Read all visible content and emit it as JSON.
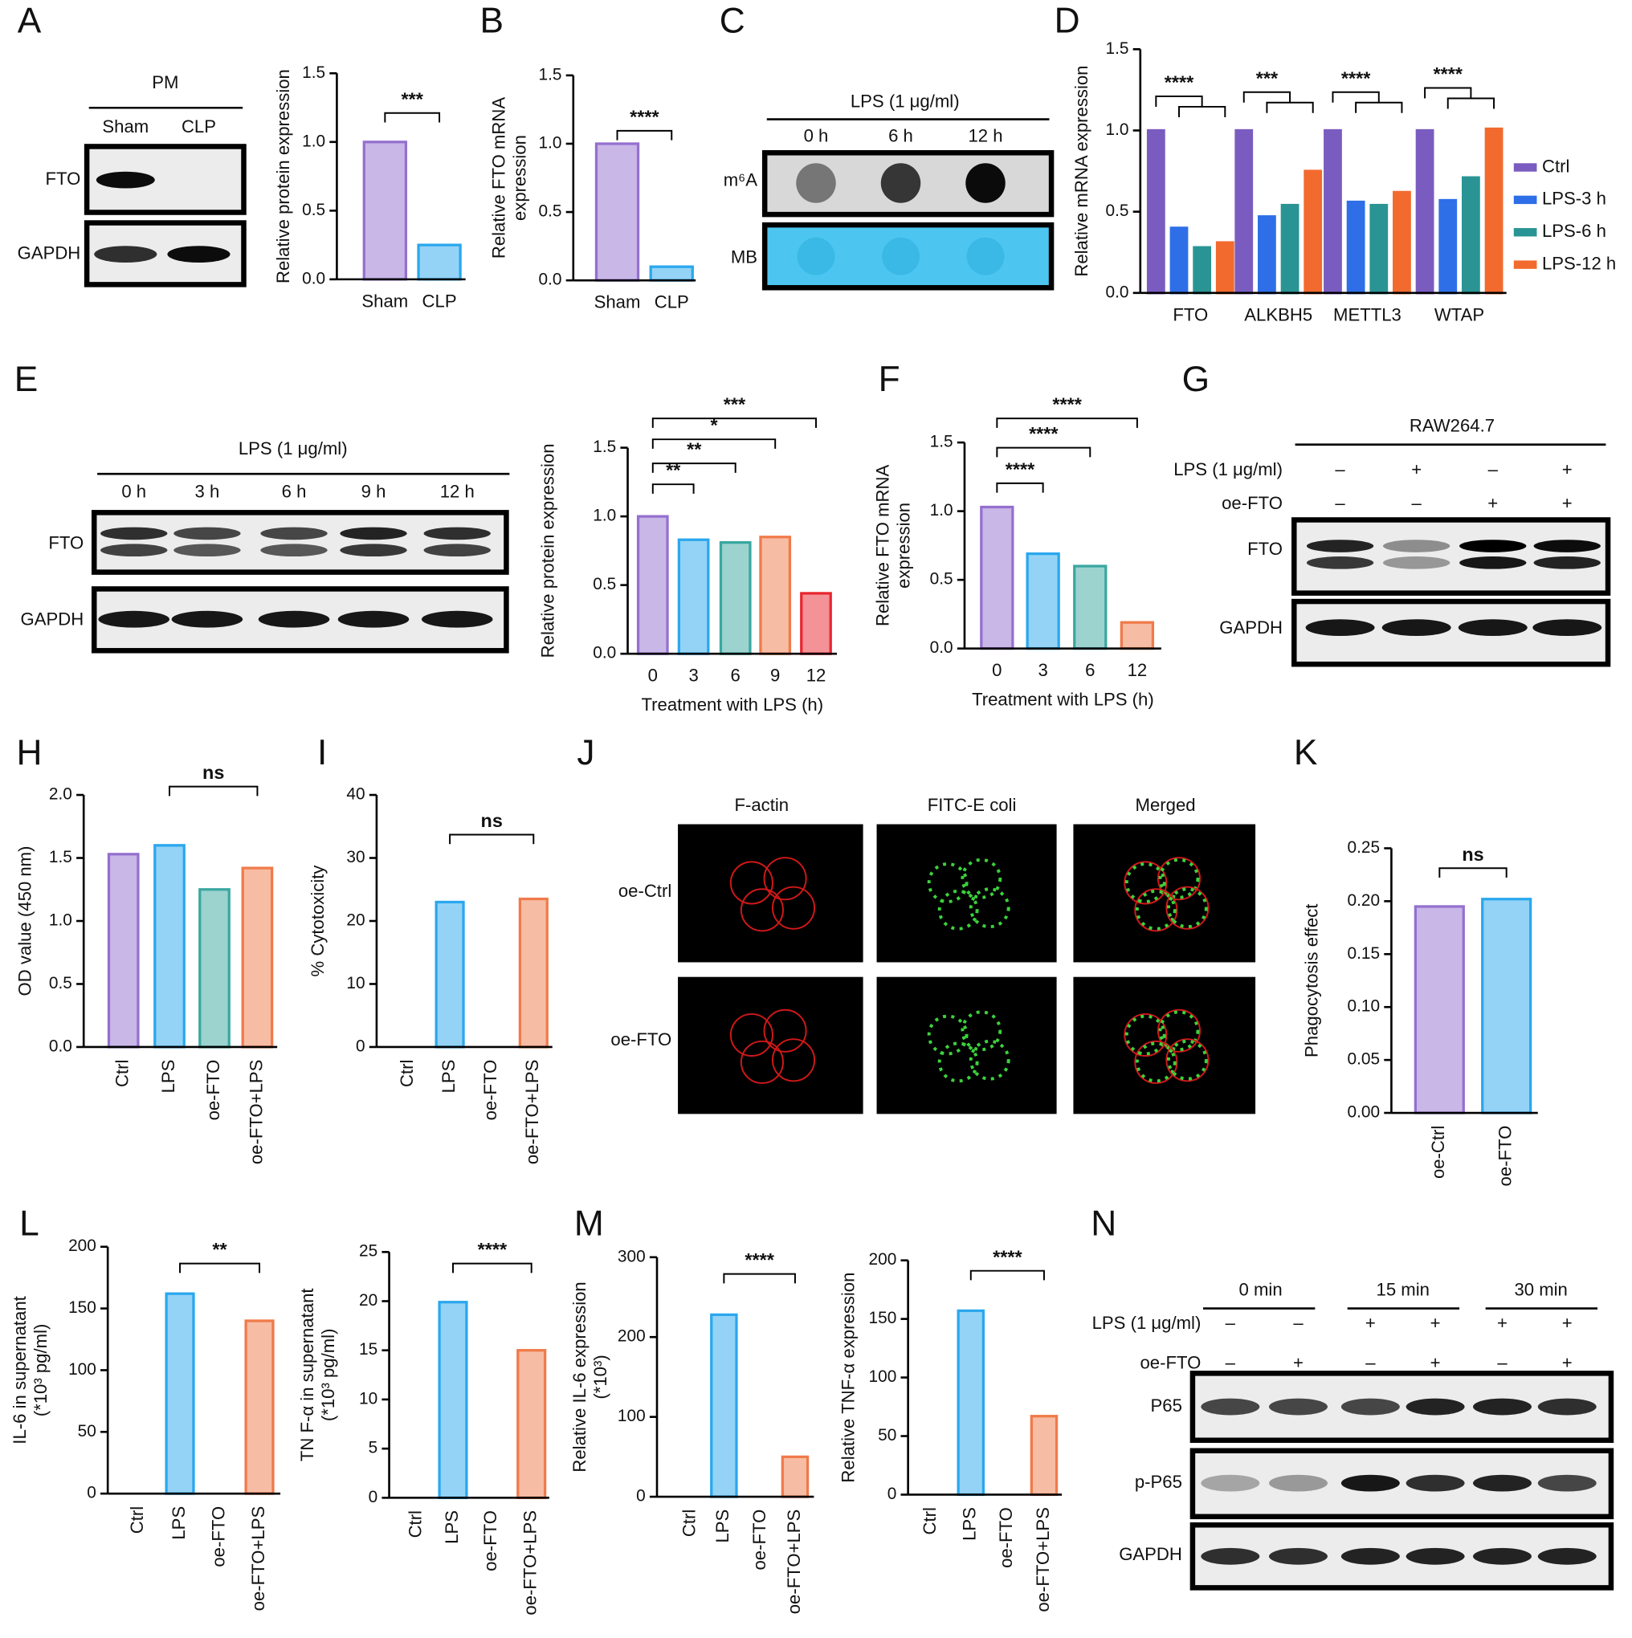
{
  "chart_data": [
    {
      "type": "bar",
      "ylabel": "Relative protein expression",
      "categories": [
        "Sham",
        "CLP"
      ],
      "values": [
        1.0,
        0.25
      ],
      "colors": [
        "#9470cf",
        "#2aa7ee"
      ],
      "ylim": [
        0,
        1.5
      ],
      "yticks": [
        {
          "value": 0,
          "label": "0.0"
        },
        0.5,
        {
          "value": 1,
          "label": "1.0"
        },
        1.5
      ],
      "significance": [
        "***"
      ]
    },
    {
      "type": "bar",
      "ylabel": [
        "Relative FTO mRNA",
        "expression"
      ],
      "categories": [
        "Sham",
        "CLP"
      ],
      "values": [
        1.0,
        0.1
      ],
      "colors": [
        "#9470cf",
        "#2aa7ee"
      ],
      "ylim": [
        0,
        1.5
      ],
      "yticks": [
        {
          "value": 0,
          "label": "0.0"
        },
        0.5,
        {
          "value": 1,
          "label": "1.0"
        },
        1.5
      ],
      "significance": [
        "****"
      ]
    },
    {
      "type": "bar",
      "ylabel": "Relative mRNA expression",
      "categories": [
        "FTO",
        "ALKBH5",
        "METTL3",
        "WTAP"
      ],
      "series": [
        {
          "name": "Ctrl",
          "color": "#7a5cc0",
          "values": [
            1,
            1,
            1,
            1
          ]
        },
        {
          "name": "LPS-3 h",
          "color": "#2e6fe8",
          "values": [
            0.4,
            0.47,
            0.56,
            0.57
          ]
        },
        {
          "name": "LPS-6 h",
          "color": "#2a9494",
          "values": [
            0.28,
            0.54,
            0.54,
            0.71
          ]
        },
        {
          "name": "LPS-12 h",
          "color": "#f26a2e",
          "values": [
            0.31,
            0.75,
            0.62,
            1.01
          ]
        }
      ],
      "ylim": [
        0,
        1.5
      ],
      "yticks": [
        {
          "value": 0,
          "label": "0.0"
        },
        0.5,
        {
          "value": 1,
          "label": "1.0"
        },
        1.5
      ],
      "significance": [
        "****",
        "***",
        "****",
        "****"
      ]
    },
    {
      "type": "bar",
      "ylabel": "Relative protein expression",
      "xlabel": "Treatment with LPS (h)",
      "categories": [
        "0",
        "3",
        "6",
        "9",
        "12"
      ],
      "values": [
        1.0,
        0.83,
        0.81,
        0.85,
        0.44
      ],
      "colors": [
        "#9470cf",
        "#2aa7ee",
        "#3aa7a0",
        "#f07a4a",
        "#e8262f"
      ],
      "ylim": [
        0,
        1.5
      ],
      "yticks": [
        {
          "value": 0,
          "label": "0.0"
        },
        0.5,
        {
          "value": 1,
          "label": "1.0"
        },
        1.5
      ],
      "significance": [
        "**",
        "**",
        "*",
        "***"
      ]
    },
    {
      "type": "bar",
      "ylabel": [
        "Relative FTO mRNA",
        "expression"
      ],
      "xlabel": "Treatment with LPS (h)",
      "categories": [
        "0",
        "3",
        "6",
        "12"
      ],
      "values": [
        1.03,
        0.69,
        0.6,
        0.19
      ],
      "colors": [
        "#9470cf",
        "#2aa7ee",
        "#3aa7a0",
        "#f07a4a"
      ],
      "ylim": [
        0,
        1.5
      ],
      "yticks": [
        {
          "value": 0,
          "label": "0.0"
        },
        0.5,
        {
          "value": 1,
          "label": "1.0"
        },
        1.5
      ],
      "significance": [
        "****",
        "****",
        "****"
      ]
    },
    {
      "type": "bar",
      "ylabel": "OD value (450 nm)",
      "categories": [
        "Ctrl",
        "LPS",
        "oe-FTO",
        "oe-FTO+LPS"
      ],
      "values": [
        1.53,
        1.6,
        1.25,
        1.42
      ],
      "colors": [
        "#9470cf",
        "#2aa7ee",
        "#3aa7a0",
        "#f07a4a"
      ],
      "ylim": [
        0,
        2
      ],
      "yticks": [
        {
          "value": 0,
          "label": "0.0"
        },
        0.5,
        {
          "value": 1,
          "label": "1.0"
        },
        1.5,
        {
          "value": 2,
          "label": "2.0"
        }
      ],
      "significance": [
        "ns"
      ]
    },
    {
      "type": "bar",
      "ylabel": "% Cytotoxicity",
      "categories": [
        "Ctrl",
        "LPS",
        "oe-FTO",
        "oe-FTO+LPS"
      ],
      "values": [
        0,
        23,
        0,
        23.5
      ],
      "colors": [
        "#9470cf",
        "#2aa7ee",
        "#3aa7a0",
        "#f07a4a"
      ],
      "ylim": [
        0,
        40
      ],
      "yticks": [
        0,
        10,
        20,
        30,
        40
      ],
      "significance": [
        "ns"
      ]
    },
    {
      "type": "bar",
      "ylabel": "Phagocytosis effect",
      "categories": [
        "oe-Ctrl",
        "oe-FTO"
      ],
      "values": [
        0.195,
        0.202
      ],
      "colors": [
        "#9470cf",
        "#2aa7ee"
      ],
      "ylim": [
        0,
        0.25
      ],
      "yticks": [
        {
          "value": 0,
          "label": "0.00"
        },
        0.05,
        {
          "value": 0.1,
          "label": "0.10"
        },
        0.15,
        {
          "value": 0.2,
          "label": "0.20"
        },
        0.25
      ],
      "significance": [
        "ns"
      ]
    },
    {
      "type": "bar",
      "ylabel": [
        "IL-6 in supernatant",
        "(*10³ pg/ml)"
      ],
      "categories": [
        "Ctrl",
        "LPS",
        "oe-FTO",
        "oe-FTO+LPS"
      ],
      "values": [
        0,
        162,
        0,
        140
      ],
      "colors": [
        "#9470cf",
        "#2aa7ee",
        "#3aa7a0",
        "#f07a4a"
      ],
      "ylim": [
        0,
        200
      ],
      "yticks": [
        0,
        50,
        100,
        150,
        200
      ],
      "significance": [
        "**"
      ]
    },
    {
      "type": "bar",
      "ylabel": [
        "TN F-α in supernatant",
        "(*10³ pg/ml)"
      ],
      "categories": [
        "Ctrl",
        "LPS",
        "oe-FTO",
        "oe-FTO+LPS"
      ],
      "values": [
        0,
        19.9,
        0,
        15
      ],
      "colors": [
        "#9470cf",
        "#2aa7ee",
        "#3aa7a0",
        "#f07a4a"
      ],
      "ylim": [
        0,
        25
      ],
      "yticks": [
        0,
        5,
        10,
        15,
        20,
        25
      ],
      "significance": [
        "****"
      ]
    },
    {
      "type": "bar",
      "ylabel": [
        "Relative IL-6 expression",
        "(*10³)"
      ],
      "categories": [
        "Ctrl",
        "LPS",
        "oe-FTO",
        "oe-FTO+LPS"
      ],
      "values": [
        0,
        228,
        0,
        50
      ],
      "colors": [
        "#9470cf",
        "#2aa7ee",
        "#3aa7a0",
        "#f07a4a"
      ],
      "ylim": [
        0,
        300
      ],
      "yticks": [
        0,
        100,
        200,
        300
      ],
      "significance": [
        "****"
      ]
    },
    {
      "type": "bar",
      "ylabel": "Relative TNF-α expression",
      "categories": [
        "Ctrl",
        "LPS",
        "oe-FTO",
        "oe-FTO+LPS"
      ],
      "values": [
        0,
        157,
        0,
        67
      ],
      "colors": [
        "#9470cf",
        "#2aa7ee",
        "#3aa7a0",
        "#f07a4a"
      ],
      "ylim": [
        0,
        200
      ],
      "yticks": [
        0,
        50,
        100,
        150,
        200
      ],
      "significance": [
        "****"
      ]
    }
  ],
  "panels": {
    "letters": [
      "A",
      "B",
      "C",
      "D",
      "E",
      "F",
      "G",
      "H",
      "I",
      "J",
      "K",
      "L",
      "M",
      "N"
    ],
    "A": {
      "header": "PM",
      "lanes": [
        "Sham",
        "CLP"
      ],
      "rows": [
        "FTO",
        "GAPDH"
      ]
    },
    "C": {
      "header": "LPS (1 μg/ml)",
      "lanes": [
        "0 h",
        "6 h",
        "12 h"
      ],
      "rows": [
        "m⁶A",
        "MB"
      ]
    },
    "E": {
      "header": "LPS (1 μg/ml)",
      "lanes": [
        "0 h",
        "3 h",
        "6 h",
        "9 h",
        "12 h"
      ],
      "rows": [
        "FTO",
        "GAPDH"
      ]
    },
    "G": {
      "header": "RAW264.7",
      "conditions": [
        {
          "name": "LPS (1 μg/ml)",
          "signs": [
            "–",
            "+",
            "–",
            "+"
          ]
        },
        {
          "name": "oe-FTO",
          "signs": [
            "–",
            "–",
            "+",
            "+"
          ]
        }
      ],
      "rows": [
        "FTO",
        "GAPDH"
      ]
    },
    "J": {
      "columns": [
        "F-actin",
        "FITC-E coli",
        "Merged"
      ],
      "rows": [
        "oe-Ctrl",
        "oe-FTO"
      ]
    },
    "N": {
      "groups": [
        "0 min",
        "15 min",
        "30 min"
      ],
      "conditions": [
        {
          "name": "LPS (1 μg/ml)",
          "signs": [
            "–",
            "–",
            "+",
            "+",
            "+",
            "+"
          ]
        },
        {
          "name": "oe-FTO",
          "signs": [
            "–",
            "+",
            "–",
            "+",
            "–",
            "+"
          ]
        }
      ],
      "rows": [
        "P65",
        "p-P65",
        "GAPDH"
      ]
    }
  }
}
